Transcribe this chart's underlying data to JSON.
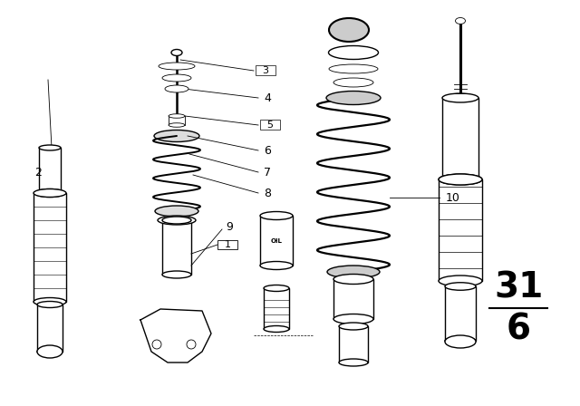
{
  "bg_color": "#ffffff",
  "line_color": "#000000",
  "fig_width": 6.4,
  "fig_height": 4.48,
  "dpi": 100,
  "page_number_top": "31",
  "page_number_bottom": "6",
  "page_number_fontsize": 28
}
